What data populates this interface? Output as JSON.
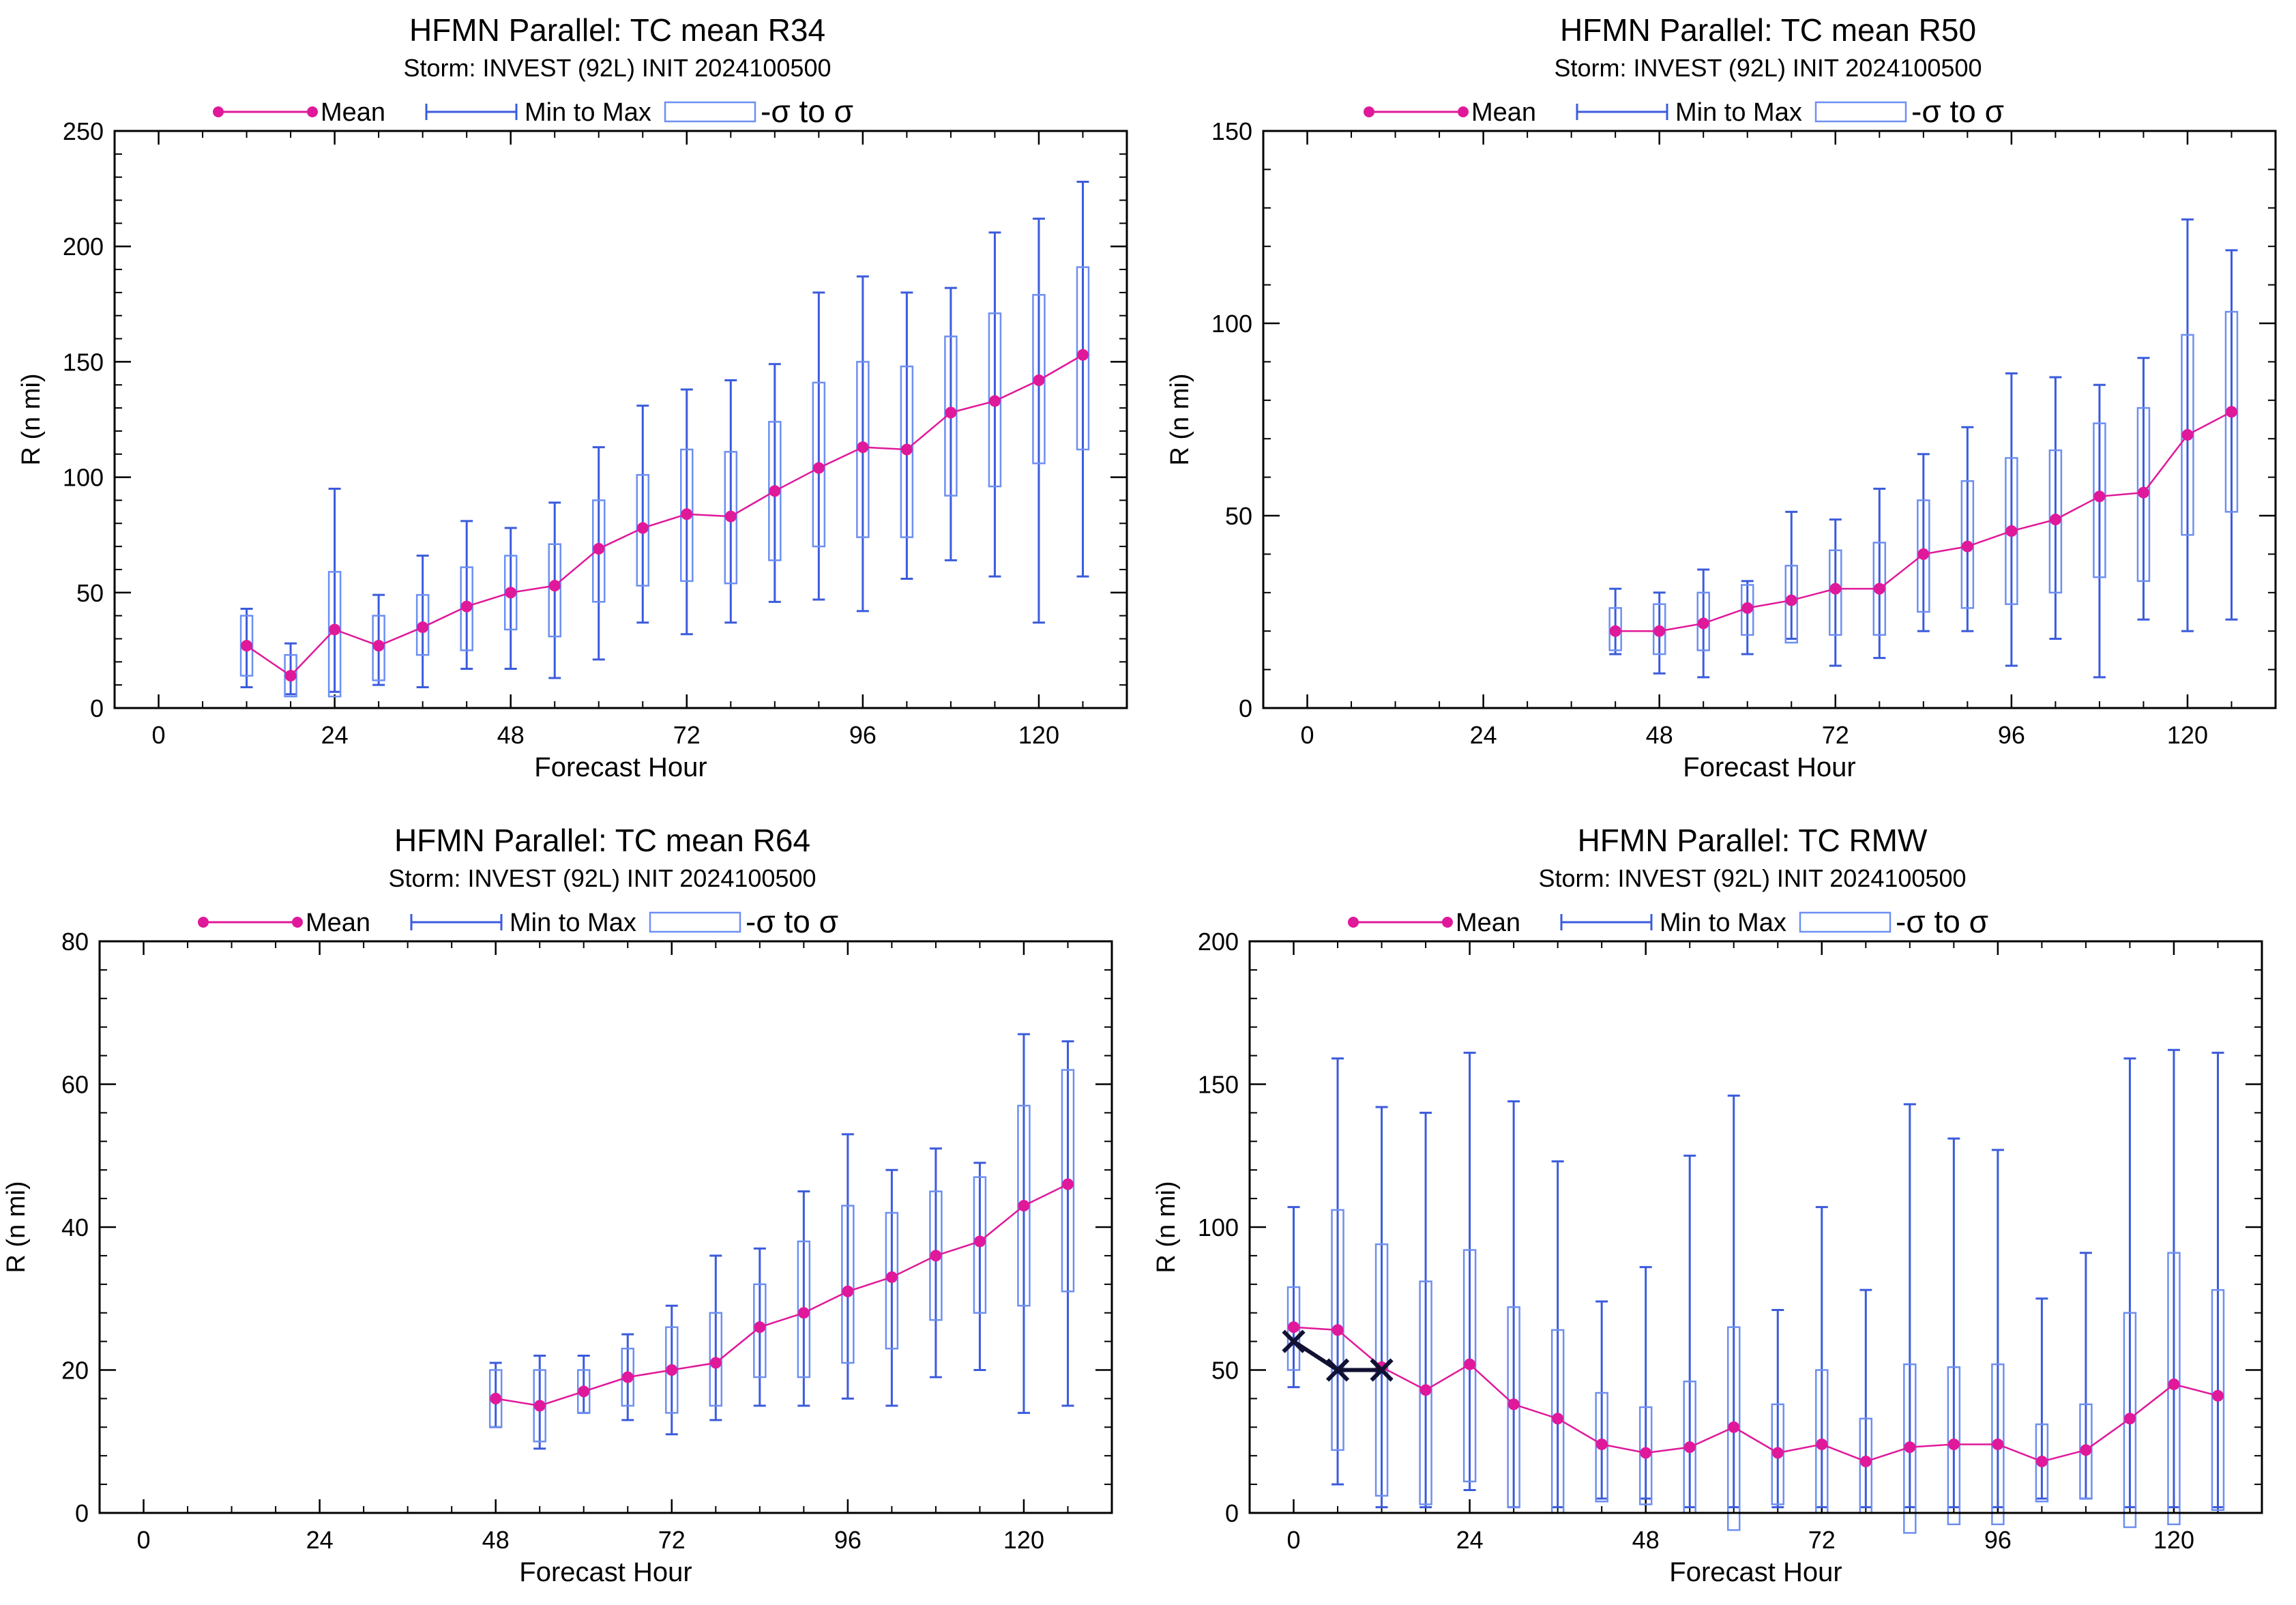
{
  "legend": {
    "mean": "Mean",
    "minmax": "Min to Max",
    "sigma": "-σ to σ"
  },
  "colors": {
    "mean": "#e0189a",
    "minmax": "#3b5bdc",
    "sigma": "#6d8ff2",
    "initial": "#111133"
  },
  "chart_data": [
    {
      "type": "box",
      "title": "HFMN Parallel: TC mean R34",
      "subtitle": "Storm: INVEST (92L) INIT 2024100500",
      "xlabel": "Forecast Hour",
      "ylabel": "R (n mi)",
      "xlim": [
        -6,
        132
      ],
      "ylim": [
        0,
        250
      ],
      "xticks": [
        0,
        24,
        48,
        72,
        96,
        120
      ],
      "yticks": [
        0,
        50,
        100,
        150,
        200,
        250
      ],
      "x": [
        12,
        18,
        24,
        30,
        36,
        42,
        48,
        54,
        60,
        66,
        72,
        78,
        84,
        90,
        96,
        102,
        108,
        114,
        120,
        126
      ],
      "mean": [
        27,
        14,
        34,
        27,
        35,
        44,
        50,
        53,
        69,
        78,
        84,
        83,
        94,
        104,
        113,
        112,
        128,
        133,
        142,
        153
      ],
      "min": [
        9,
        6,
        7,
        10,
        9,
        17,
        17,
        13,
        21,
        37,
        32,
        37,
        46,
        47,
        42,
        56,
        64,
        57,
        37,
        57
      ],
      "max": [
        43,
        28,
        95,
        49,
        66,
        81,
        78,
        89,
        113,
        131,
        138,
        142,
        149,
        180,
        187,
        180,
        182,
        206,
        212,
        228
      ],
      "sigma_low": [
        14,
        5,
        5,
        12,
        23,
        25,
        34,
        31,
        46,
        53,
        55,
        54,
        64,
        70,
        74,
        74,
        92,
        96,
        106,
        112
      ],
      "sigma_high": [
        40,
        23,
        59,
        40,
        49,
        61,
        66,
        71,
        90,
        101,
        112,
        111,
        124,
        141,
        150,
        148,
        161,
        171,
        179,
        191
      ]
    },
    {
      "type": "box",
      "title": "HFMN Parallel: TC mean R50",
      "subtitle": "Storm: INVEST (92L) INIT 2024100500",
      "xlabel": "Forecast Hour",
      "ylabel": "R (n mi)",
      "xlim": [
        -6,
        132
      ],
      "ylim": [
        0,
        150
      ],
      "xticks": [
        0,
        24,
        48,
        72,
        96,
        120
      ],
      "yticks": [
        0,
        50,
        100,
        150
      ],
      "x": [
        42,
        48,
        54,
        60,
        66,
        72,
        78,
        84,
        90,
        96,
        102,
        108,
        114,
        120,
        126
      ],
      "mean": [
        20,
        20,
        22,
        26,
        28,
        31,
        31,
        40,
        42,
        46,
        49,
        55,
        56,
        71,
        77
      ],
      "min": [
        14,
        9,
        8,
        14,
        18,
        11,
        13,
        20,
        20,
        11,
        18,
        8,
        23,
        20,
        23
      ],
      "max": [
        31,
        30,
        36,
        33,
        51,
        49,
        57,
        66,
        73,
        87,
        86,
        84,
        91,
        127,
        119
      ],
      "sigma_low": [
        15,
        14,
        15,
        19,
        17,
        19,
        19,
        25,
        26,
        27,
        30,
        34,
        33,
        45,
        51
      ],
      "sigma_high": [
        26,
        27,
        30,
        32,
        37,
        41,
        43,
        54,
        59,
        65,
        67,
        74,
        78,
        97,
        103
      ]
    },
    {
      "type": "box",
      "title": "HFMN Parallel: TC mean R64",
      "subtitle": "Storm: INVEST (92L) INIT 2024100500",
      "xlabel": "Forecast Hour",
      "ylabel": "R (n mi)",
      "xlim": [
        -6,
        132
      ],
      "ylim": [
        0,
        80
      ],
      "xticks": [
        0,
        24,
        48,
        72,
        96,
        120
      ],
      "yticks": [
        0,
        20,
        40,
        60,
        80
      ],
      "x": [
        48,
        54,
        60,
        66,
        72,
        78,
        84,
        90,
        96,
        102,
        108,
        114,
        120,
        126
      ],
      "mean": [
        16,
        15,
        17,
        19,
        20,
        21,
        26,
        28,
        31,
        33,
        36,
        38,
        43,
        46
      ],
      "min": [
        12,
        9,
        14,
        13,
        11,
        13,
        15,
        15,
        16,
        15,
        19,
        20,
        14,
        15
      ],
      "max": [
        21,
        22,
        22,
        25,
        29,
        36,
        37,
        45,
        53,
        48,
        51,
        49,
        67,
        66
      ],
      "sigma_low": [
        12,
        10,
        14,
        15,
        14,
        15,
        19,
        19,
        21,
        23,
        27,
        28,
        29,
        31
      ],
      "sigma_high": [
        20,
        20,
        20,
        23,
        26,
        28,
        32,
        38,
        43,
        42,
        45,
        47,
        57,
        62
      ]
    },
    {
      "type": "box",
      "title": "HFMN Parallel: TC RMW",
      "subtitle": "Storm: INVEST (92L) INIT 2024100500",
      "xlabel": "Forecast Hour",
      "ylabel": "R (n mi)",
      "xlim": [
        -6,
        132
      ],
      "ylim": [
        0,
        200
      ],
      "xticks": [
        0,
        24,
        48,
        72,
        96,
        120
      ],
      "yticks": [
        0,
        50,
        100,
        150,
        200
      ],
      "x": [
        0,
        6,
        12,
        18,
        24,
        30,
        36,
        42,
        48,
        54,
        60,
        66,
        72,
        78,
        84,
        90,
        96,
        102,
        108,
        114,
        120,
        126
      ],
      "mean": [
        65,
        64,
        51,
        43,
        52,
        38,
        33,
        24,
        21,
        23,
        30,
        21,
        24,
        18,
        23,
        24,
        24,
        18,
        22,
        33,
        45,
        41
      ],
      "min": [
        44,
        10,
        2,
        2,
        8,
        2,
        2,
        5,
        5,
        2,
        2,
        2,
        2,
        2,
        2,
        2,
        2,
        5,
        5,
        2,
        2,
        2
      ],
      "max": [
        107,
        159,
        142,
        140,
        161,
        144,
        123,
        74,
        86,
        125,
        146,
        71,
        107,
        78,
        143,
        131,
        127,
        75,
        91,
        159,
        162,
        161
      ],
      "sigma_low": [
        50,
        22,
        6,
        3,
        11,
        2,
        0,
        4,
        3,
        0,
        -6,
        3,
        0,
        0,
        -7,
        -4,
        -4,
        4,
        5,
        -5,
        -4,
        1
      ],
      "sigma_high": [
        79,
        106,
        94,
        81,
        92,
        72,
        64,
        42,
        37,
        46,
        65,
        38,
        50,
        33,
        52,
        51,
        52,
        31,
        38,
        70,
        91,
        78
      ],
      "initial": {
        "x": [
          0,
          6,
          12
        ],
        "y": [
          60,
          50,
          50
        ]
      }
    }
  ]
}
